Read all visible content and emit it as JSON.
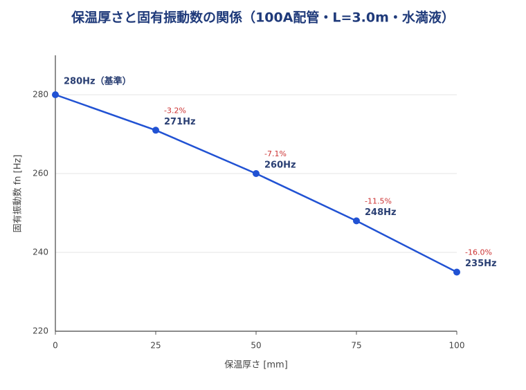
{
  "chart_data": {
    "type": "line",
    "title": "保温厚さと固有振動数の関係（100A配管・L=3.0m・水満液）",
    "x_label": "保温厚さ [mm]",
    "y_label": "固有振動数 fn [Hz]",
    "x": [
      0,
      25,
      50,
      75,
      100
    ],
    "series": [
      {
        "name": "固有振動数",
        "color": "#2152d3",
        "values": [
          280,
          271,
          260,
          248,
          235
        ],
        "value_labels": [
          "280Hz（基準）",
          "271Hz",
          "260Hz",
          "248Hz",
          "235Hz"
        ],
        "change_labels": [
          null,
          "-3.2%",
          "-7.1%",
          "-11.5%",
          "-16.0%"
        ]
      }
    ],
    "xlim": [
      0,
      100
    ],
    "xticks": [
      0,
      25,
      50,
      75,
      100
    ],
    "ylim": [
      220,
      290
    ],
    "yticks": [
      220,
      240,
      260,
      280
    ],
    "grid": true
  }
}
